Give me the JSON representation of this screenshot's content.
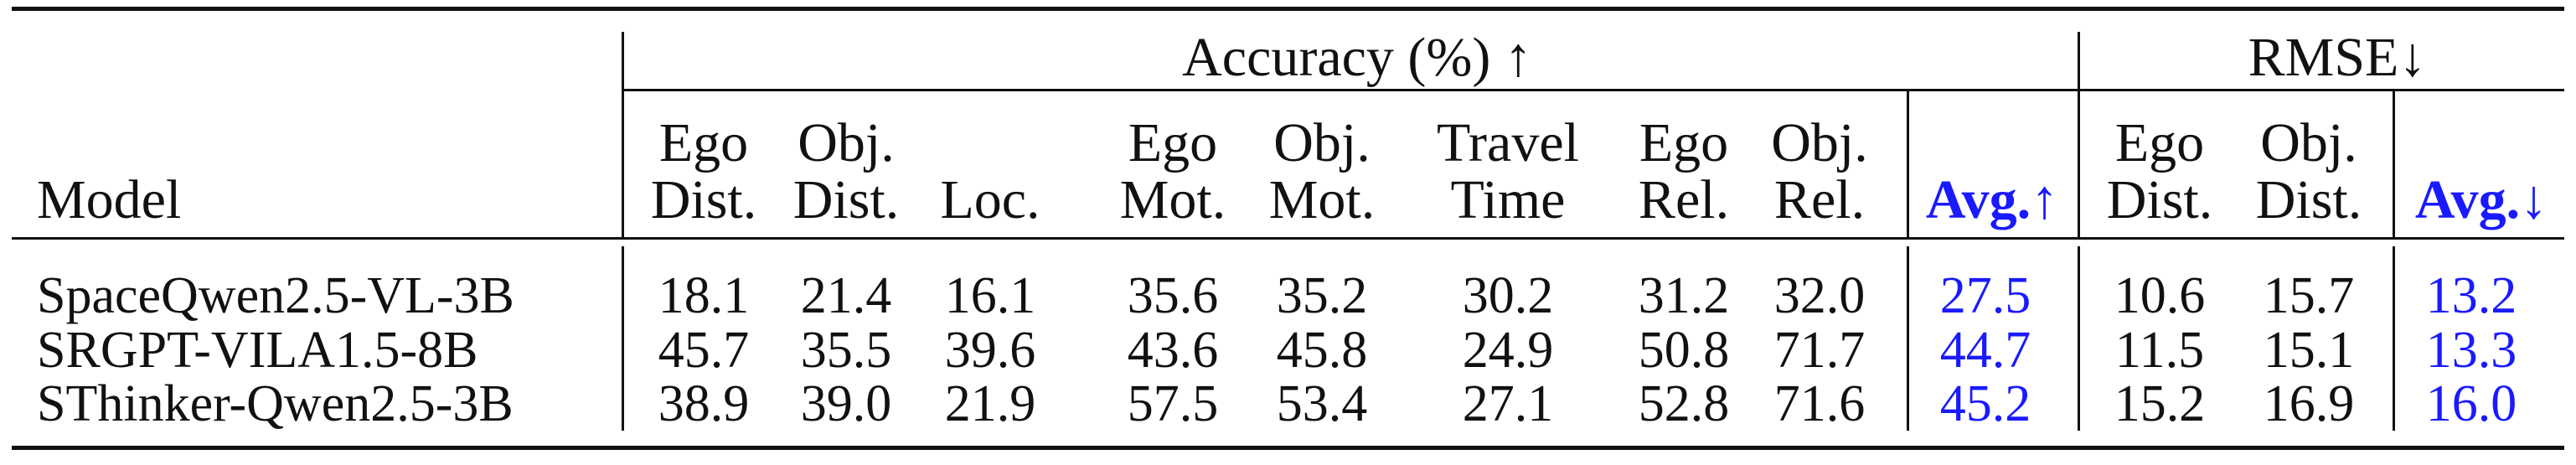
{
  "group_headers": {
    "accuracy": "Accuracy (%) ↑",
    "rmse": "RMSE↓"
  },
  "columns": {
    "model": "Model",
    "acc": [
      {
        "l1": "Ego",
        "l2": "Dist."
      },
      {
        "l1": "Obj.",
        "l2": "Dist."
      },
      {
        "l1": "",
        "l2": "Loc."
      },
      {
        "l1": "Ego",
        "l2": "Mot."
      },
      {
        "l1": "Obj.",
        "l2": "Mot."
      },
      {
        "l1": "Travel",
        "l2": "Time"
      },
      {
        "l1": "Ego",
        "l2": "Rel."
      },
      {
        "l1": "Obj.",
        "l2": "Rel."
      }
    ],
    "acc_avg": "Avg.↑",
    "rmse": [
      {
        "l1": "Ego",
        "l2": "Dist."
      },
      {
        "l1": "Obj.",
        "l2": "Dist."
      }
    ],
    "rmse_avg": "Avg.↓"
  },
  "rows": [
    {
      "model": "SpaceQwen2.5-VL-3B",
      "acc": [
        "18.1",
        "21.4",
        "16.1",
        "35.6",
        "35.2",
        "30.2",
        "31.2",
        "32.0"
      ],
      "acc_avg": "27.5",
      "rmse": [
        "10.6",
        "15.7"
      ],
      "rmse_avg": "13.2"
    },
    {
      "model": "SRGPT-VILA1.5-8B",
      "acc": [
        "45.7",
        "35.5",
        "39.6",
        "43.6",
        "45.8",
        "24.9",
        "50.8",
        "71.7"
      ],
      "acc_avg": "44.7",
      "rmse": [
        "11.5",
        "15.1"
      ],
      "rmse_avg": "13.3"
    },
    {
      "model": "SThinker-Qwen2.5-3B",
      "acc": [
        "38.9",
        "39.0",
        "21.9",
        "57.5",
        "53.4",
        "27.1",
        "52.8",
        "71.6"
      ],
      "acc_avg": "45.2",
      "rmse": [
        "15.2",
        "16.9"
      ],
      "rmse_avg": "16.0"
    }
  ]
}
